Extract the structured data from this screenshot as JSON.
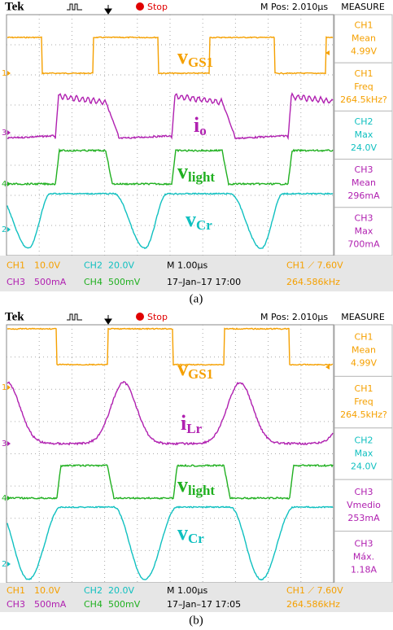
{
  "panels": [
    {
      "header": {
        "brand": "Tek",
        "status": "Stop",
        "position": "M Pos: 2.010µs",
        "measure_title": "MEASURE"
      },
      "labels": [
        {
          "main": "v",
          "sub": "GS1"
        },
        {
          "main": "i",
          "sub": "o"
        },
        {
          "main": "v",
          "sub": "light"
        },
        {
          "main": "v",
          "sub": "Cr"
        }
      ],
      "markers": [
        "1",
        "3",
        "4",
        "2"
      ],
      "measurements": [
        [
          "CH1",
          "Mean",
          "4.99V"
        ],
        [
          "CH1",
          "Freq",
          "264.5kHz?"
        ],
        [
          "CH2",
          "Max",
          "24.0V"
        ],
        [
          "CH3",
          "Mean",
          "296mA"
        ],
        [
          "CH3",
          "Max",
          "700mA"
        ]
      ],
      "status": [
        [
          "CH1",
          "10.0V",
          "CH2",
          "20.0V",
          "M 1.00µs",
          "CH1 ⟋ 7.60V"
        ],
        [
          "CH3",
          "500mA",
          "CH4",
          "500mV",
          "17–Jan–17 17:00",
          "264.586kHz"
        ]
      ],
      "caption": "(a)"
    },
    {
      "header": {
        "brand": "Tek",
        "status": "Stop",
        "position": "M Pos: 2.010µs",
        "measure_title": "MEASURE"
      },
      "labels": [
        {
          "main": "v",
          "sub": "GS1"
        },
        {
          "main": "i",
          "sub": "Lr"
        },
        {
          "main": "v",
          "sub": "light"
        },
        {
          "main": "v",
          "sub": "Cr"
        }
      ],
      "markers": [
        "1",
        "3",
        "4",
        "2"
      ],
      "measurements": [
        [
          "CH1",
          "Mean",
          "4.99V"
        ],
        [
          "CH1",
          "Freq",
          "264.5kHz?"
        ],
        [
          "CH2",
          "Max",
          "24.0V"
        ],
        [
          "CH3",
          "Vmedio",
          "253mA"
        ],
        [
          "CH3",
          "Máx.",
          "1.18A"
        ]
      ],
      "status": [
        [
          "CH1",
          "10.0V",
          "CH2",
          "20.0V",
          "M 1.00µs",
          "CH1 ⟋ 7.60V"
        ],
        [
          "CH3",
          "500mA",
          "CH4",
          "500mV",
          "17–Jan–17 17:05",
          "264.586kHz"
        ]
      ],
      "caption": "(b)"
    }
  ]
}
